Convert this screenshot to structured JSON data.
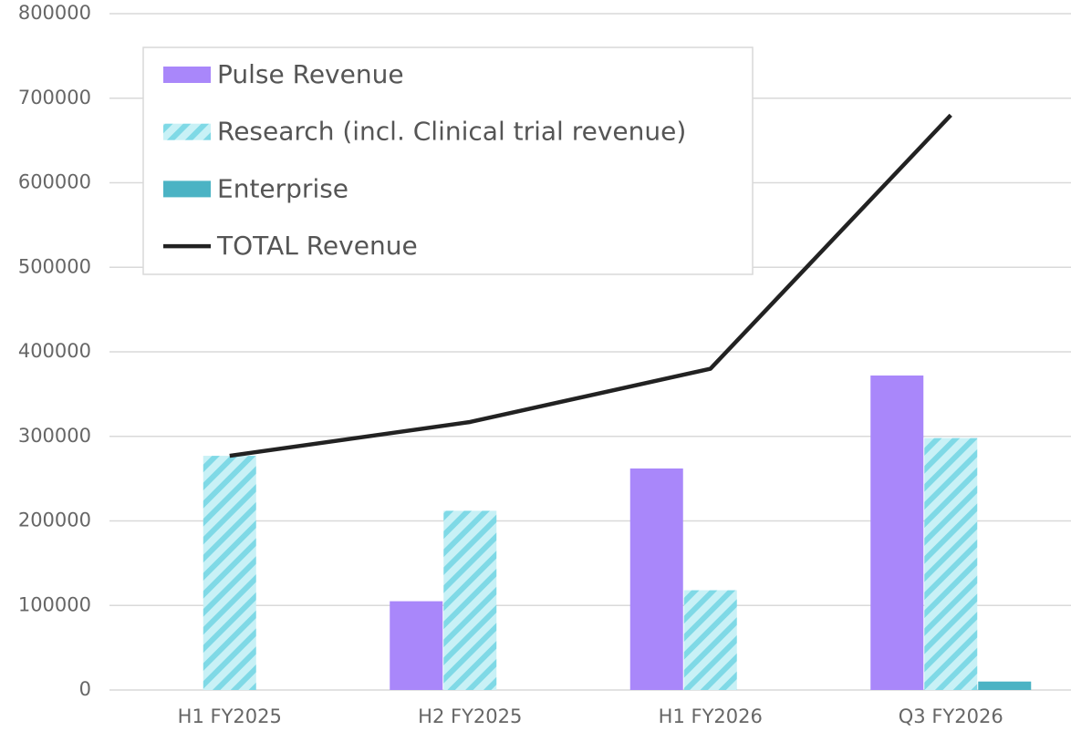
{
  "chart_data": {
    "type": "bar",
    "categories": [
      "H1 FY2025",
      "H2 FY2025",
      "H1 FY2026",
      "Q3 FY2026"
    ],
    "series": [
      {
        "name": "Pulse Revenue",
        "type": "bar",
        "color": "#a987fa",
        "values": [
          0,
          105000,
          262000,
          372000
        ]
      },
      {
        "name": "Research (incl. Clinical trial revenue)",
        "type": "bar",
        "color": "#7fd9e6",
        "hatch": true,
        "values": [
          277000,
          212000,
          118000,
          298000
        ]
      },
      {
        "name": "Enterprise",
        "type": "bar",
        "color": "#4bb3c4",
        "values": [
          0,
          0,
          0,
          10000
        ]
      },
      {
        "name": "TOTAL Revenue",
        "type": "line",
        "color": "#222222",
        "values": [
          277000,
          317000,
          380000,
          680000
        ]
      }
    ],
    "ylim": [
      0,
      800000
    ],
    "yticks": [
      0,
      100000,
      200000,
      300000,
      400000,
      500000,
      600000,
      700000,
      800000
    ],
    "grid": true,
    "legend": "top-left"
  }
}
